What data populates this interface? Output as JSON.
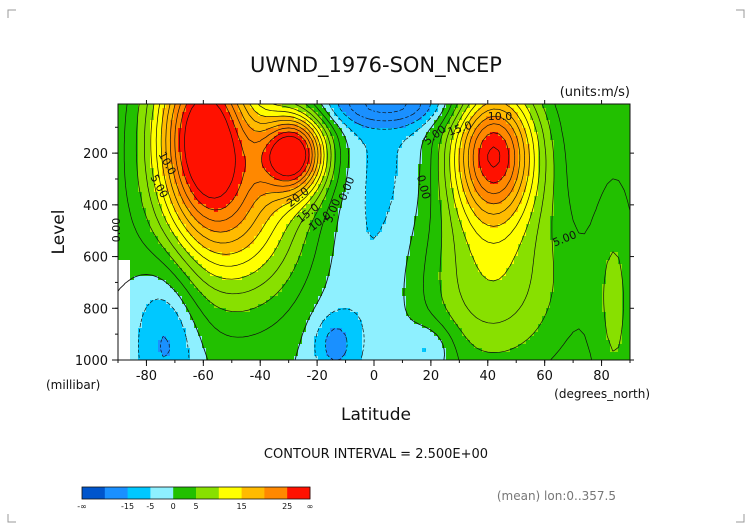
{
  "chart_data": {
    "type": "heatmap",
    "title": "UWND_1976-SON_NCEP",
    "units": "(units:m/s)",
    "xlabel": "Latitude",
    "ylabel": "Level",
    "x_unit": "(degrees_north)",
    "y_unit": "(millibar)",
    "xlim": [
      -90,
      90
    ],
    "ylim": [
      1000,
      10
    ],
    "x_ticks": [
      "-80",
      "-60",
      "-40",
      "-20",
      "0",
      "20",
      "40",
      "60",
      "80"
    ],
    "y_ticks": [
      "200",
      "400",
      "600",
      "800",
      "1000"
    ],
    "contour_interval_label": "CONTOUR INTERVAL = 2.500E+00",
    "contour_labels": [
      "10.0",
      "5.00",
      "0.00",
      "20.0",
      "15.0",
      "10.0",
      "5.00",
      "0.00",
      "0.00",
      "5.00",
      "15.0",
      "10.0",
      "5.00"
    ],
    "jets": [
      {
        "lat": -60,
        "level": 100,
        "peak": 27
      },
      {
        "lat": -28,
        "level": 200,
        "peak": 27
      },
      {
        "lat": 42,
        "level": 200,
        "peak": 27
      }
    ],
    "colorbar": {
      "colors": [
        "#0055cc",
        "#1a90ff",
        "#00c8ff",
        "#8ef0ff",
        "#22c000",
        "#88e000",
        "#ffff00",
        "#ffbb00",
        "#ff8800",
        "#ff1100"
      ],
      "tick_labels": [
        "-∞",
        "-15",
        "-5",
        "0",
        "5",
        "15",
        "25",
        "∞"
      ]
    },
    "mean_note": "(mean) lon:0..357.5"
  }
}
